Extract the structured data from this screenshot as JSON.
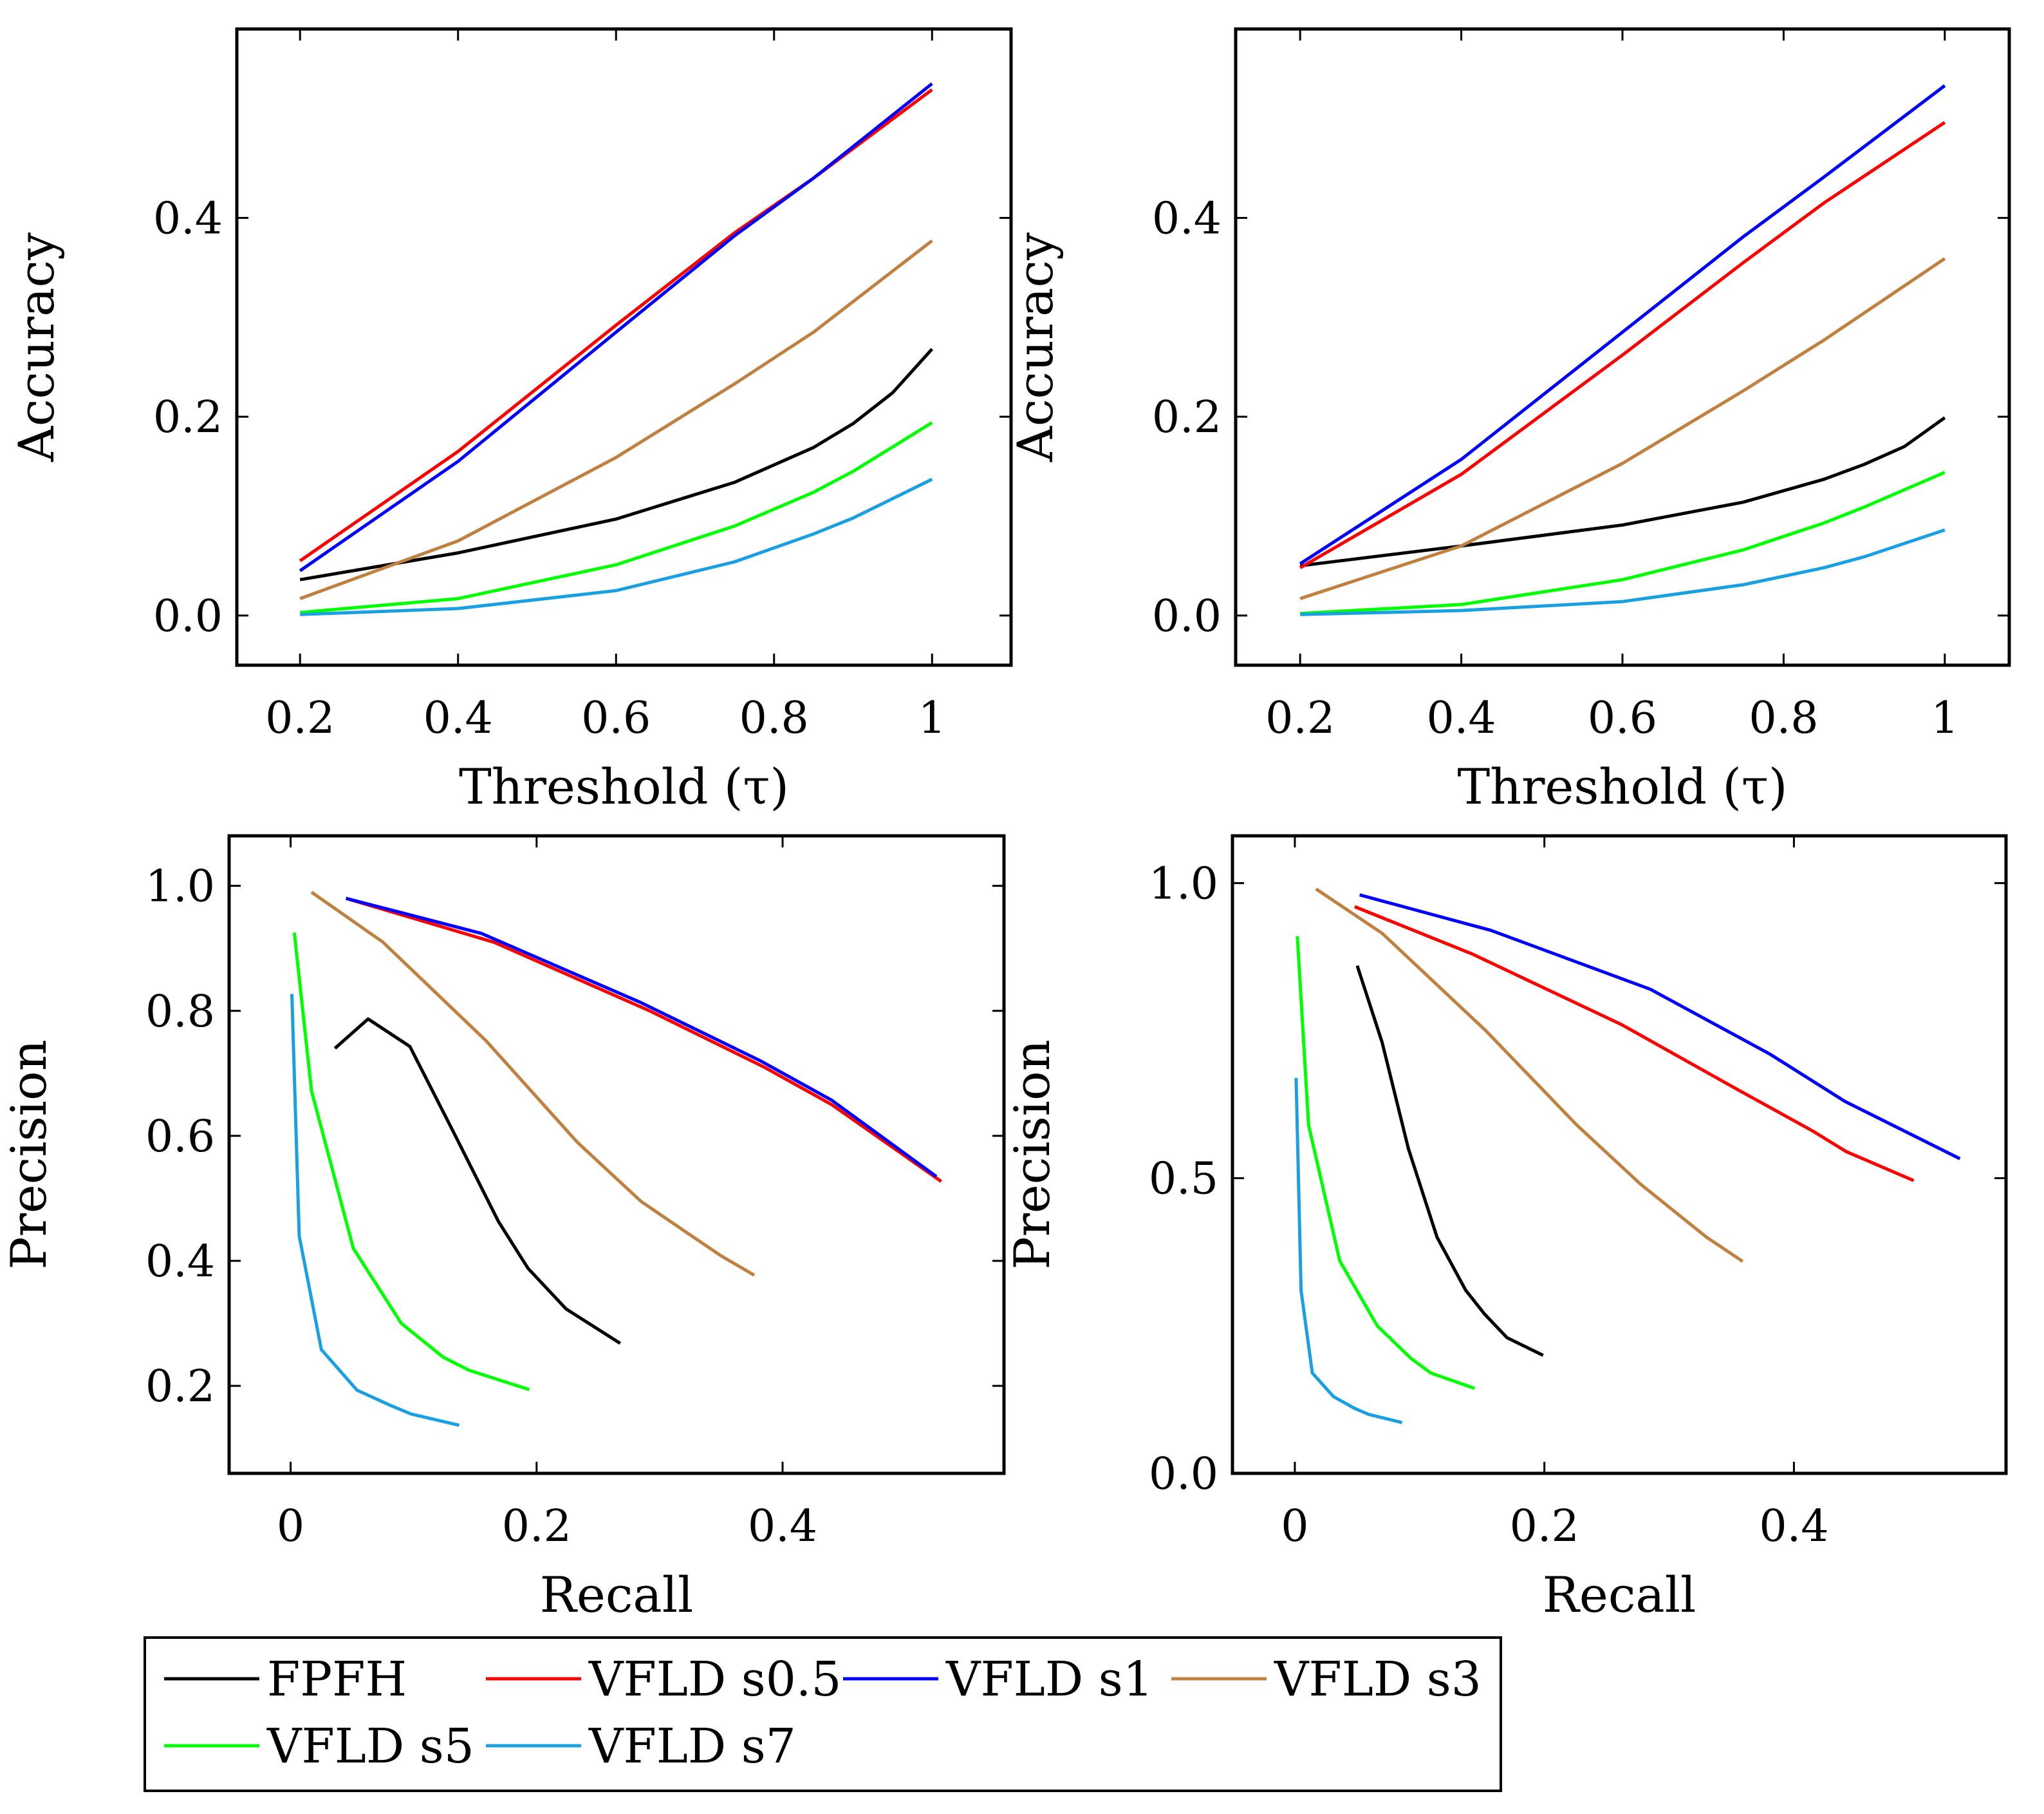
{
  "chart_data": [
    {
      "type": "line",
      "xlabel": "Threshold (τ)",
      "ylabel": "Accuracy",
      "xlim": [
        0.12,
        1.1
      ],
      "ylim": [
        -0.05,
        0.59
      ],
      "xticks": [
        0.2,
        0.4,
        0.6,
        0.8,
        1
      ],
      "xtick_labels": [
        "0.2",
        "0.4",
        "0.6",
        "0.8",
        "1"
      ],
      "yticks": [
        0.0,
        0.2,
        0.4
      ],
      "ytick_labels": [
        "0.0",
        "0.2",
        "0.4"
      ],
      "series": [
        {
          "name": "FPFH",
          "x": [
            0.2,
            0.4,
            0.6,
            0.75,
            0.85,
            0.9,
            0.95,
            1
          ],
          "y": [
            0.036,
            0.063,
            0.097,
            0.134,
            0.169,
            0.193,
            0.224,
            0.268
          ]
        },
        {
          "name": "VFLD s0.5",
          "x": [
            0.2,
            0.4,
            0.6,
            0.75,
            0.85,
            1
          ],
          "y": [
            0.055,
            0.165,
            0.292,
            0.385,
            0.44,
            0.529
          ]
        },
        {
          "name": "VFLD s1",
          "x": [
            0.2,
            0.4,
            0.6,
            0.75,
            0.85,
            1
          ],
          "y": [
            0.045,
            0.155,
            0.285,
            0.382,
            0.44,
            0.535
          ]
        },
        {
          "name": "VFLD s3",
          "x": [
            0.2,
            0.4,
            0.6,
            0.75,
            0.85,
            1
          ],
          "y": [
            0.017,
            0.075,
            0.159,
            0.233,
            0.285,
            0.377
          ]
        },
        {
          "name": "VFLD s5",
          "x": [
            0.2,
            0.4,
            0.6,
            0.75,
            0.85,
            0.9,
            1
          ],
          "y": [
            0.003,
            0.017,
            0.051,
            0.09,
            0.124,
            0.145,
            0.194
          ]
        },
        {
          "name": "VFLD s7",
          "x": [
            0.2,
            0.4,
            0.6,
            0.75,
            0.85,
            0.9,
            1
          ],
          "y": [
            0.001,
            0.007,
            0.025,
            0.054,
            0.082,
            0.098,
            0.137
          ]
        }
      ]
    },
    {
      "type": "line",
      "xlabel": "Threshold (τ)",
      "ylabel": "Accuracy",
      "xlim": [
        0.12,
        1.08
      ],
      "ylim": [
        -0.05,
        0.59
      ],
      "xticks": [
        0.2,
        0.4,
        0.6,
        0.8,
        1
      ],
      "xtick_labels": [
        "0.2",
        "0.4",
        "0.6",
        "0.8",
        "1"
      ],
      "yticks": [
        0.0,
        0.2,
        0.4
      ],
      "ytick_labels": [
        "0.0",
        "0.2",
        "0.4"
      ],
      "series": [
        {
          "name": "FPFH",
          "x": [
            0.2,
            0.4,
            0.6,
            0.75,
            0.85,
            0.9,
            0.95,
            1
          ],
          "y": [
            0.05,
            0.07,
            0.091,
            0.114,
            0.137,
            0.152,
            0.17,
            0.199
          ]
        },
        {
          "name": "VFLD s0.5",
          "x": [
            0.2,
            0.4,
            0.6,
            0.75,
            0.85,
            0.9,
            1
          ],
          "y": [
            0.048,
            0.142,
            0.262,
            0.355,
            0.415,
            0.442,
            0.496
          ]
        },
        {
          "name": "VFLD s1",
          "x": [
            0.2,
            0.4,
            0.6,
            0.75,
            0.85,
            1
          ],
          "y": [
            0.052,
            0.157,
            0.285,
            0.381,
            0.441,
            0.533
          ]
        },
        {
          "name": "VFLD s3",
          "x": [
            0.2,
            0.4,
            0.6,
            0.75,
            0.85,
            1
          ],
          "y": [
            0.017,
            0.07,
            0.153,
            0.226,
            0.277,
            0.359
          ]
        },
        {
          "name": "VFLD s5",
          "x": [
            0.2,
            0.4,
            0.6,
            0.75,
            0.85,
            0.9,
            1
          ],
          "y": [
            0.002,
            0.011,
            0.036,
            0.066,
            0.093,
            0.109,
            0.144
          ]
        },
        {
          "name": "VFLD s7",
          "x": [
            0.2,
            0.4,
            0.6,
            0.75,
            0.85,
            0.9,
            1
          ],
          "y": [
            0.001,
            0.005,
            0.014,
            0.031,
            0.048,
            0.059,
            0.086
          ]
        }
      ]
    },
    {
      "type": "line",
      "xlabel": "Recall",
      "ylabel": "Precision",
      "xlim": [
        -0.05,
        0.58
      ],
      "ylim": [
        0.06,
        1.08
      ],
      "xticks": [
        0,
        0.2,
        0.4
      ],
      "xtick_labels": [
        "0",
        "0.2",
        "0.4"
      ],
      "yticks": [
        0.2,
        0.4,
        0.6,
        0.8,
        1.0
      ],
      "ytick_labels": [
        "0.2",
        "0.4",
        "0.6",
        "0.8",
        "1.0"
      ],
      "series": [
        {
          "name": "FPFH",
          "x": [
            0.036,
            0.063,
            0.097,
            0.134,
            0.169,
            0.193,
            0.224,
            0.268
          ],
          "y": [
            0.74,
            0.787,
            0.743,
            0.6,
            0.463,
            0.388,
            0.323,
            0.268
          ]
        },
        {
          "name": "VFLD s0.5",
          "x": [
            0.045,
            0.165,
            0.292,
            0.385,
            0.44,
            0.529
          ],
          "y": [
            0.98,
            0.91,
            0.8,
            0.71,
            0.65,
            0.527
          ]
        },
        {
          "name": "VFLD s1",
          "x": [
            0.045,
            0.155,
            0.285,
            0.382,
            0.44,
            0.525
          ],
          "y": [
            0.98,
            0.924,
            0.813,
            0.72,
            0.657,
            0.535
          ]
        },
        {
          "name": "VFLD s3",
          "x": [
            0.017,
            0.075,
            0.159,
            0.233,
            0.285,
            0.32,
            0.35,
            0.377
          ],
          "y": [
            0.99,
            0.91,
            0.752,
            0.59,
            0.495,
            0.448,
            0.408,
            0.377
          ]
        },
        {
          "name": "VFLD s5",
          "x": [
            0.003,
            0.017,
            0.051,
            0.09,
            0.124,
            0.145,
            0.194
          ],
          "y": [
            0.925,
            0.672,
            0.42,
            0.3,
            0.246,
            0.225,
            0.194
          ]
        },
        {
          "name": "VFLD s7",
          "x": [
            0.001,
            0.007,
            0.025,
            0.054,
            0.082,
            0.098,
            0.137
          ],
          "y": [
            0.827,
            0.44,
            0.258,
            0.193,
            0.168,
            0.155,
            0.137
          ]
        }
      ]
    },
    {
      "type": "line",
      "xlabel": "Recall",
      "ylabel": "Precision",
      "xlim": [
        -0.05,
        0.57
      ],
      "ylim": [
        0.0,
        1.08
      ],
      "xticks": [
        0,
        0.2,
        0.4
      ],
      "xtick_labels": [
        "0",
        "0.2",
        "0.4"
      ],
      "yticks": [
        0.0,
        0.5,
        1.0
      ],
      "ytick_labels": [
        "0.0",
        "0.5",
        "1.0"
      ],
      "series": [
        {
          "name": "FPFH",
          "x": [
            0.05,
            0.07,
            0.091,
            0.114,
            0.137,
            0.152,
            0.17,
            0.199
          ],
          "y": [
            0.86,
            0.73,
            0.55,
            0.4,
            0.31,
            0.27,
            0.23,
            0.2
          ]
        },
        {
          "name": "VFLD s0.5",
          "x": [
            0.048,
            0.142,
            0.262,
            0.355,
            0.415,
            0.442,
            0.496
          ],
          "y": [
            0.96,
            0.88,
            0.76,
            0.65,
            0.58,
            0.545,
            0.496
          ]
        },
        {
          "name": "VFLD s1",
          "x": [
            0.052,
            0.157,
            0.285,
            0.381,
            0.441,
            0.533
          ],
          "y": [
            0.98,
            0.92,
            0.82,
            0.71,
            0.63,
            0.533
          ]
        },
        {
          "name": "VFLD s3",
          "x": [
            0.017,
            0.07,
            0.153,
            0.226,
            0.277,
            0.33,
            0.359
          ],
          "y": [
            0.99,
            0.915,
            0.75,
            0.59,
            0.49,
            0.4,
            0.359
          ]
        },
        {
          "name": "VFLD s5",
          "x": [
            0.002,
            0.011,
            0.036,
            0.066,
            0.093,
            0.109,
            0.144
          ],
          "y": [
            0.91,
            0.59,
            0.36,
            0.25,
            0.195,
            0.17,
            0.144
          ]
        },
        {
          "name": "VFLD s7",
          "x": [
            0.001,
            0.005,
            0.014,
            0.031,
            0.048,
            0.059,
            0.086
          ],
          "y": [
            0.67,
            0.31,
            0.17,
            0.13,
            0.11,
            0.1,
            0.086
          ]
        }
      ]
    }
  ],
  "legend": {
    "entries": [
      {
        "name": "FPFH",
        "color": "#000000"
      },
      {
        "name": "VFLD s0.5",
        "color": "#ff0000"
      },
      {
        "name": "VFLD s1",
        "color": "#0000ff"
      },
      {
        "name": "VFLD s3",
        "color": "#bf8040"
      },
      {
        "name": "VFLD s5",
        "color": "#00ff00"
      },
      {
        "name": "VFLD s7",
        "color": "#1a9fe0"
      }
    ]
  }
}
